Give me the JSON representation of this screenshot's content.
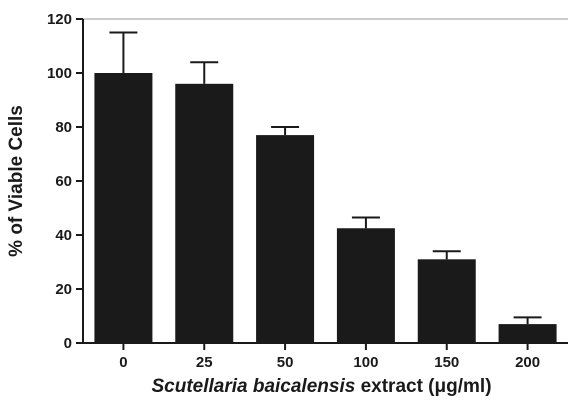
{
  "chart_data": {
    "type": "bar",
    "categories": [
      "0",
      "25",
      "50",
      "100",
      "150",
      "200"
    ],
    "values": [
      100,
      96,
      77,
      42.5,
      31,
      7
    ],
    "error": [
      15,
      8,
      3,
      4,
      3,
      2.5
    ],
    "ylabel": "% of Viable Cells",
    "xlabel": {
      "italic_part": "Scutellaria baicalensis",
      "normal_part": " extract (μg/ml)"
    },
    "ylim": [
      0,
      120
    ],
    "yticks": [
      "0",
      "20",
      "40",
      "60",
      "80",
      "100",
      "120"
    ],
    "grid": false,
    "legend": "none",
    "bar_color": "#1a1a1a"
  }
}
